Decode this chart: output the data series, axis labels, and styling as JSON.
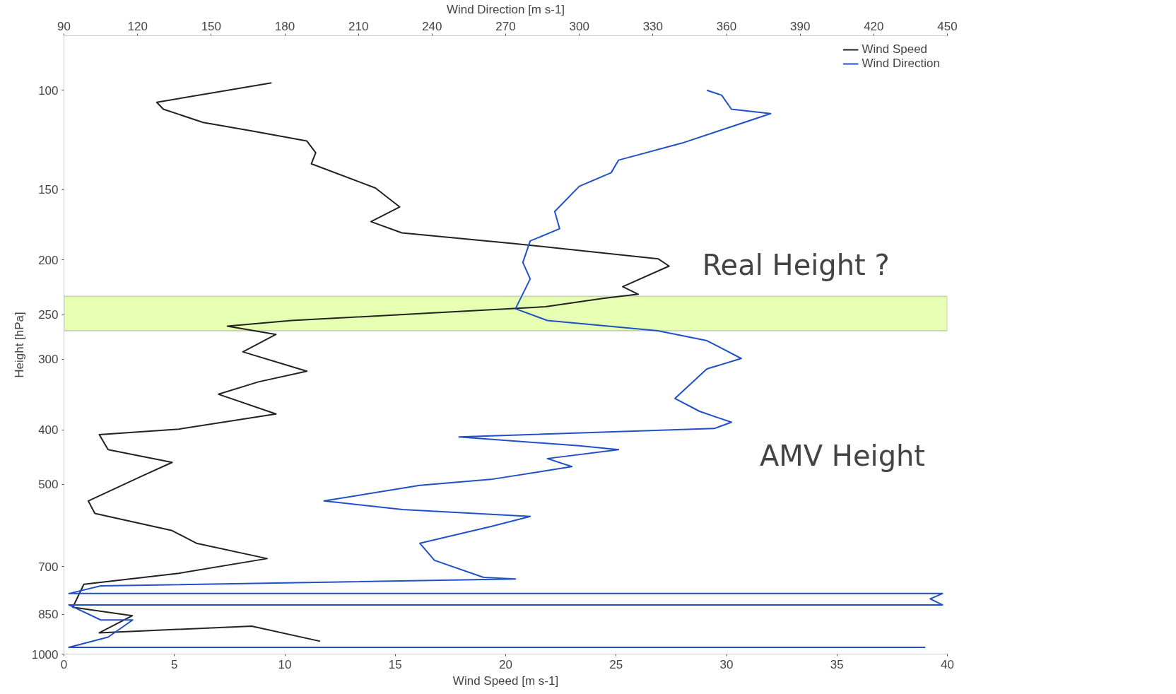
{
  "chart_data": {
    "type": "line",
    "xlabel": "Wind Speed [m s-1]",
    "x2label": "Wind Direction [m s-1]",
    "ylabel": "Height [hPa]",
    "xlim": [
      0,
      40
    ],
    "xticks": [
      0,
      5,
      10,
      15,
      20,
      25,
      30,
      35,
      40
    ],
    "x2lim": [
      90,
      450
    ],
    "x2ticks": [
      90,
      120,
      150,
      180,
      210,
      240,
      270,
      300,
      330,
      360,
      390,
      420,
      450
    ],
    "ylim": [
      1000,
      80
    ],
    "yticks": [
      100,
      150,
      200,
      250,
      300,
      400,
      500,
      700,
      850,
      1000
    ],
    "log": "y",
    "grid": false,
    "legend": "top right",
    "line_style": "solid",
    "series": [
      {
        "name": "Wind Speed",
        "color": "#222222",
        "x": [
          9.4,
          4.2,
          4.5,
          6.3,
          8.5,
          11.0,
          11.4,
          11.2,
          14.1,
          15.2,
          13.9,
          15.3,
          20.4,
          26.9,
          27.4,
          25.3,
          26.0,
          24.4,
          21.8,
          16.1,
          10.3,
          7.4,
          9.6,
          8.1,
          11.0,
          8.8,
          7.0,
          9.6,
          5.2,
          1.6,
          2.0,
          4.9,
          3.6,
          1.1,
          1.4,
          4.9,
          6.0,
          9.2,
          5.2,
          0.9,
          0.4,
          3.1,
          1.6,
          8.5,
          11.6
        ],
        "values": [
          97,
          105,
          108,
          114,
          118,
          123,
          129,
          135,
          149,
          161,
          171,
          179,
          187,
          199,
          205,
          223,
          230,
          234,
          242,
          249,
          256,
          262,
          271,
          291,
          315,
          329,
          346,
          375,
          399,
          408,
          434,
          457,
          482,
          535,
          563,
          604,
          636,
          677,
          719,
          752,
          826,
          855,
          917,
          892,
          949
        ]
      },
      {
        "name": "Wind Direction",
        "color": "#2050c8",
        "axis": "x2",
        "x": [
          352,
          358,
          362,
          378,
          362,
          342,
          316,
          313,
          300,
          290,
          292,
          280,
          277,
          280,
          274,
          287,
          332,
          352,
          366,
          352,
          339,
          349,
          362,
          355,
          251,
          300,
          316,
          287,
          297,
          264,
          235,
          196,
          228,
          280,
          264,
          235,
          241,
          261,
          274,
          105,
          92,
          448,
          443,
          448,
          92,
          105,
          118,
          108,
          92,
          441
        ],
        "values": [
          100,
          102,
          108,
          110,
          116,
          124,
          133,
          140,
          148,
          164,
          176,
          185,
          202,
          216,
          244,
          256,
          267,
          278,
          299,
          312,
          352,
          371,
          388,
          398,
          412,
          427,
          434,
          450,
          465,
          490,
          502,
          535,
          554,
          570,
          594,
          636,
          682,
          731,
          736,
          757,
          781,
          781,
          798,
          818,
          818,
          870,
          870,
          933,
          973,
          973
        ]
      }
    ],
    "bands": [
      {
        "axis": "y",
        "from": 232,
        "to": 267,
        "color": "#e6ffb3"
      }
    ],
    "annotations": [
      "Real Height ?",
      "AMV Height"
    ]
  }
}
